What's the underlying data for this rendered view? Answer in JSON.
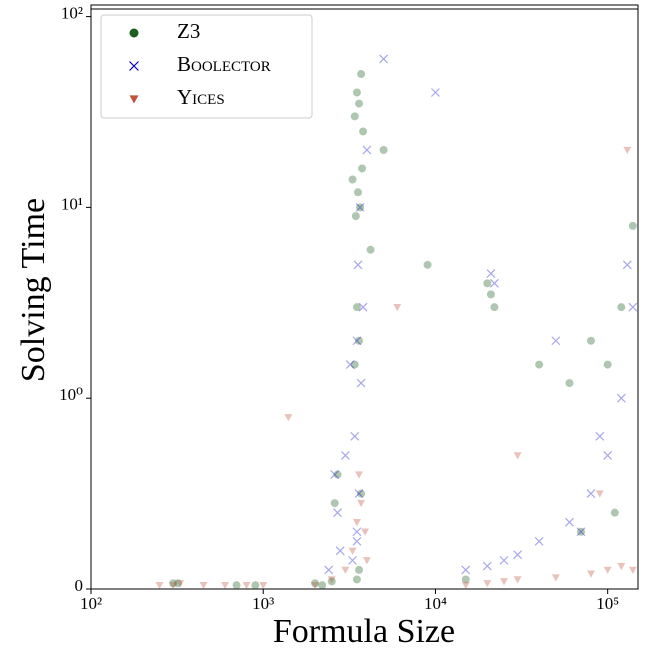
{
  "chart_data": {
    "type": "scatter",
    "xlabel": "Formula Size",
    "ylabel": "Solving Time",
    "xscale": "log",
    "yscale": "symlog",
    "xlim": [
      100,
      150000
    ],
    "ylim": [
      0,
      115
    ],
    "xticks": [
      {
        "value": 100,
        "label": "10²"
      },
      {
        "value": 1000,
        "label": "10³"
      },
      {
        "value": 10000,
        "label": "10⁴"
      },
      {
        "value": 100000,
        "label": "10⁵"
      }
    ],
    "yticks": [
      0,
      {
        "value": 1,
        "label": "10⁰"
      },
      {
        "value": 10,
        "label": "10¹"
      },
      {
        "value": 100,
        "label": "10²"
      }
    ],
    "legend": "upper left",
    "series": [
      {
        "name": "Z3",
        "color": "#1b5e20",
        "marker": "circle",
        "x": [
          3500,
          3700,
          3400,
          3600,
          3800,
          3300,
          3550,
          3650,
          3450,
          3750,
          3500,
          3600,
          3400,
          3700,
          2600,
          2700,
          4200,
          3500,
          3600,
          2200,
          300,
          320,
          700,
          900,
          2500,
          15000,
          20000,
          21000,
          22000,
          60000,
          80000,
          100000,
          120000,
          140000,
          2000,
          5000,
          9000,
          40000,
          70000,
          110000
        ],
        "values": [
          40,
          50,
          30,
          35,
          25,
          14,
          12,
          10,
          9,
          16,
          3,
          2,
          1.5,
          0.5,
          0.45,
          0.6,
          6,
          0.05,
          0.1,
          0.02,
          0.03,
          0.03,
          0.02,
          0.02,
          0.04,
          0.05,
          4,
          3.5,
          3,
          1.2,
          2,
          1.5,
          3,
          8,
          0.03,
          20,
          5,
          1.5,
          0.3,
          0.4
        ]
      },
      {
        "name": "Boolector",
        "color": "#0000cc",
        "marker": "x",
        "x": [
          3500,
          3600,
          3400,
          3700,
          3500,
          3300,
          3800,
          3550,
          3650,
          2600,
          2700,
          2800,
          15000,
          20000,
          25000,
          30000,
          40000,
          60000,
          80000,
          100000,
          120000,
          140000,
          21000,
          22000,
          3500,
          4000,
          5000,
          10000,
          50000,
          90000,
          130000,
          3000,
          3200,
          2400,
          70000
        ],
        "values": [
          0.3,
          0.5,
          0.8,
          1.2,
          2,
          0.15,
          3,
          5,
          10,
          0.6,
          0.4,
          0.2,
          0.1,
          0.12,
          0.15,
          0.18,
          0.25,
          0.35,
          0.5,
          0.7,
          1,
          3,
          4.5,
          4,
          0.25,
          20,
          60,
          40,
          2,
          0.8,
          5,
          0.7,
          1.5,
          0.1,
          0.3
        ]
      },
      {
        "name": "Yices",
        "color": "#c0543c",
        "marker": "triangle-down",
        "x": [
          250,
          300,
          330,
          450,
          600,
          800,
          1000,
          2000,
          2500,
          3000,
          3300,
          3500,
          3700,
          3900,
          4000,
          3600,
          15000,
          20000,
          25000,
          30000,
          50000,
          80000,
          100000,
          120000,
          140000,
          1400,
          6000,
          30000,
          90000,
          130000
        ],
        "values": [
          0.02,
          0.02,
          0.03,
          0.02,
          0.02,
          0.02,
          0.02,
          0.02,
          0.05,
          0.1,
          0.2,
          0.35,
          0.45,
          0.3,
          0.15,
          0.6,
          0.02,
          0.03,
          0.04,
          0.05,
          0.06,
          0.08,
          0.1,
          0.12,
          0.1,
          0.9,
          3,
          0.7,
          0.5,
          20
        ]
      }
    ]
  }
}
